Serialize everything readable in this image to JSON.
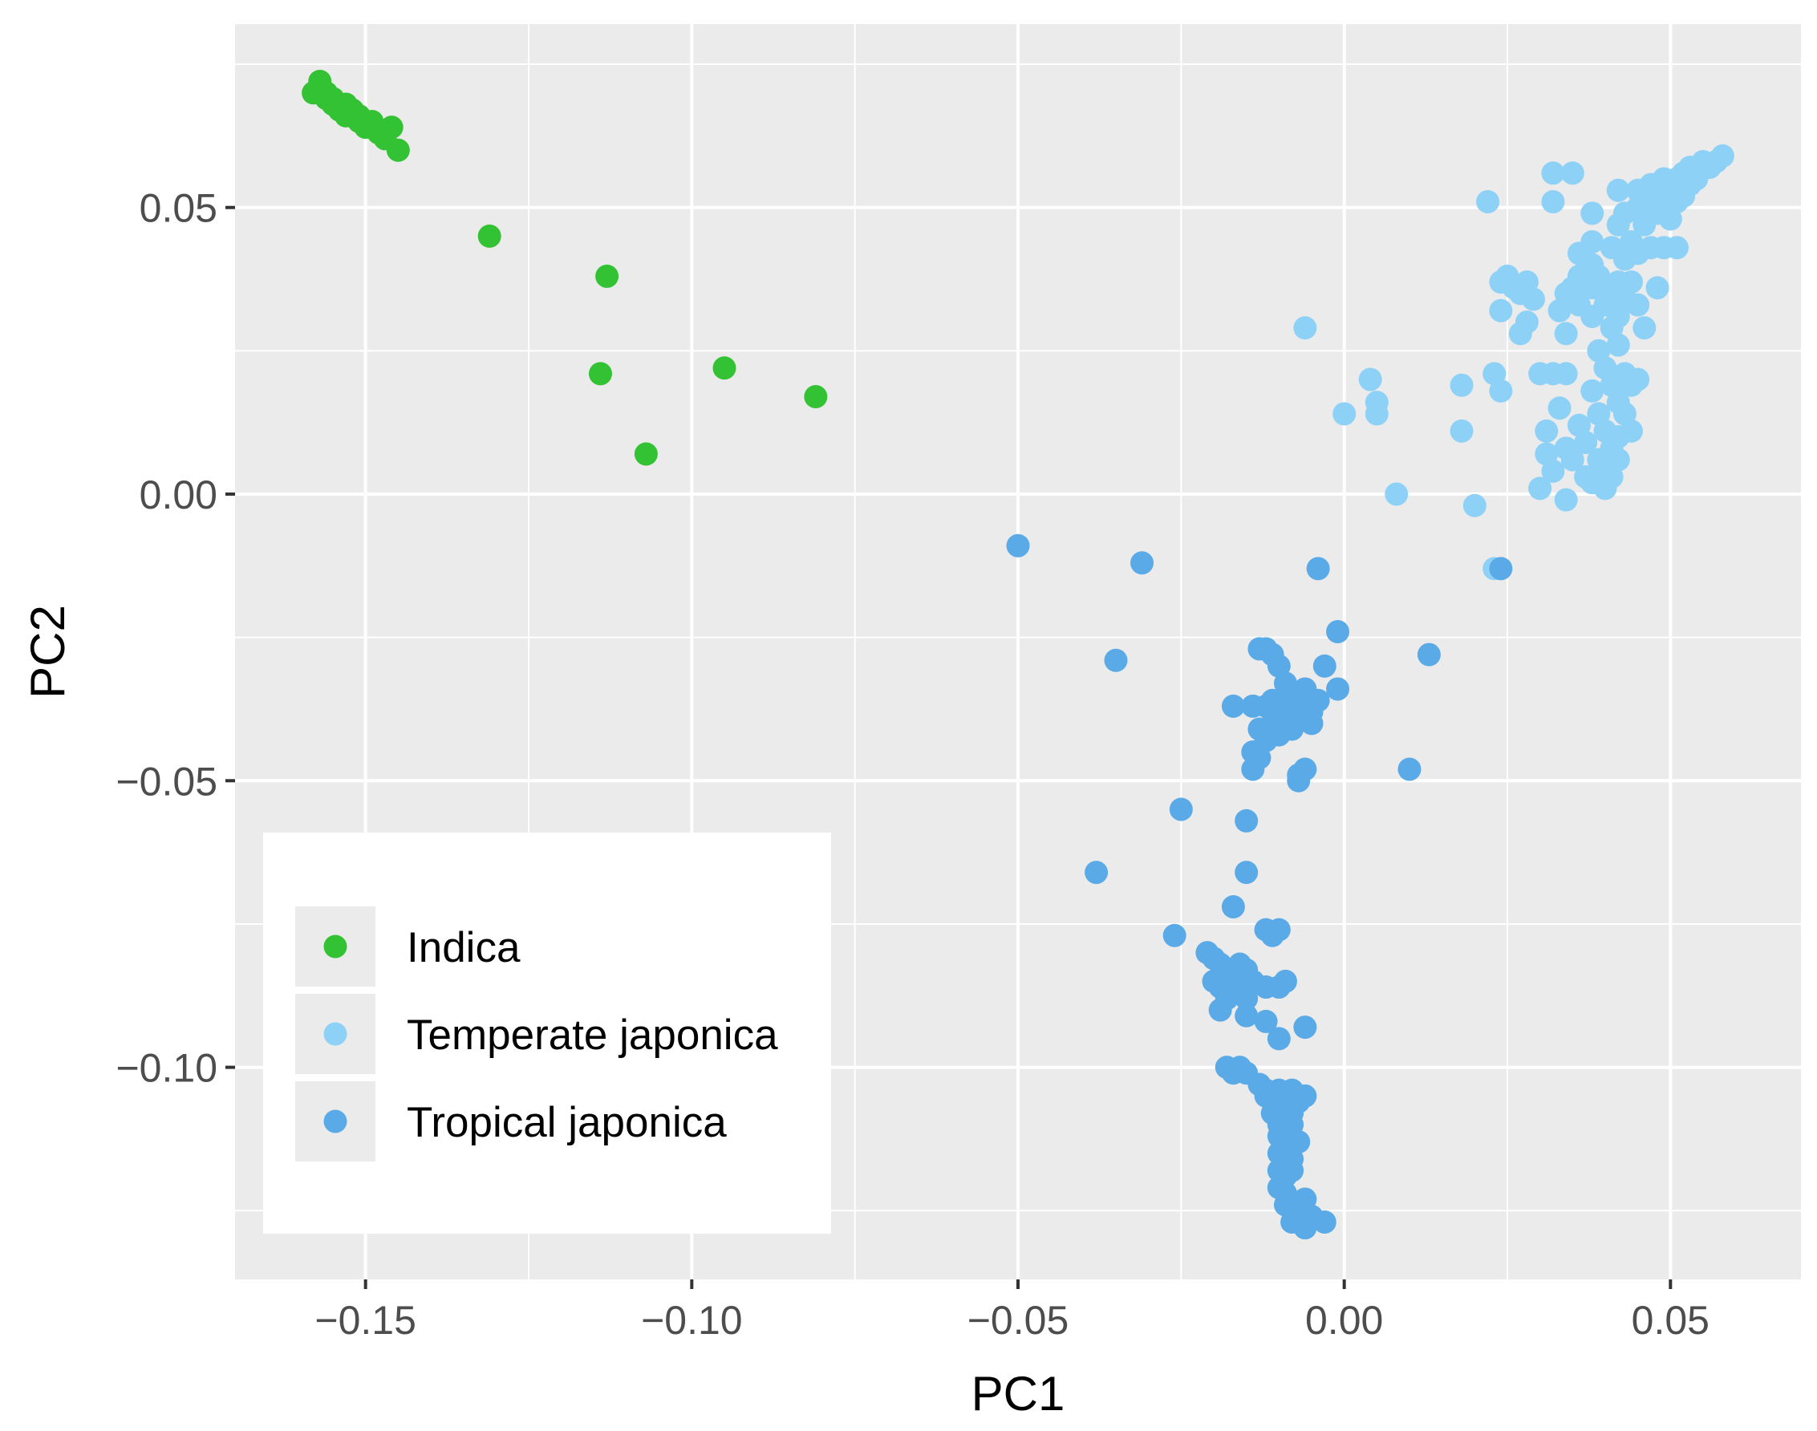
{
  "chart_data": {
    "type": "scatter",
    "title": "",
    "xlabel": "PC1",
    "ylabel": "PC2",
    "xlim": [
      -0.17,
      0.07
    ],
    "ylim": [
      -0.137,
      0.082
    ],
    "x_ticks": [
      -0.15,
      -0.1,
      -0.05,
      0.0,
      0.05
    ],
    "x_tick_labels": [
      "−0.15",
      "−0.10",
      "−0.05",
      "0.00",
      "0.05"
    ],
    "y_ticks": [
      0.05,
      0.0,
      -0.05,
      -0.1
    ],
    "y_tick_labels": [
      "0.05",
      "0.00",
      "−0.05",
      "−0.10"
    ],
    "grid": true,
    "legend_position": "bottom-left",
    "panel_background": "#ebebeb",
    "series": [
      {
        "name": "Indica",
        "color": "#33c233",
        "points": [
          [
            -0.158,
            0.07
          ],
          [
            -0.157,
            0.071
          ],
          [
            -0.157,
            0.072
          ],
          [
            -0.156,
            0.069
          ],
          [
            -0.156,
            0.07
          ],
          [
            -0.155,
            0.068
          ],
          [
            -0.155,
            0.069
          ],
          [
            -0.154,
            0.068
          ],
          [
            -0.154,
            0.067
          ],
          [
            -0.153,
            0.066
          ],
          [
            -0.153,
            0.068
          ],
          [
            -0.152,
            0.067
          ],
          [
            -0.152,
            0.066
          ],
          [
            -0.151,
            0.065
          ],
          [
            -0.151,
            0.066
          ],
          [
            -0.15,
            0.064
          ],
          [
            -0.149,
            0.065
          ],
          [
            -0.148,
            0.063
          ],
          [
            -0.147,
            0.062
          ],
          [
            -0.146,
            0.064
          ],
          [
            -0.145,
            0.06
          ],
          [
            -0.131,
            0.045
          ],
          [
            -0.113,
            0.038
          ],
          [
            -0.114,
            0.021
          ],
          [
            -0.095,
            0.022
          ],
          [
            -0.081,
            0.017
          ],
          [
            -0.107,
            0.007
          ]
        ]
      },
      {
        "name": "Temperate japonica",
        "color": "#8ed1f7",
        "points": [
          [
            -0.006,
            0.029
          ],
          [
            0.0,
            0.014
          ],
          [
            0.004,
            0.02
          ],
          [
            0.005,
            0.014
          ],
          [
            0.005,
            0.016
          ],
          [
            0.008,
            0.0
          ],
          [
            0.018,
            0.019
          ],
          [
            0.018,
            0.011
          ],
          [
            0.02,
            -0.002
          ],
          [
            0.023,
            -0.013
          ],
          [
            0.022,
            0.051
          ],
          [
            0.023,
            0.021
          ],
          [
            0.024,
            0.018
          ],
          [
            0.024,
            0.032
          ],
          [
            0.024,
            0.037
          ],
          [
            0.025,
            0.038
          ],
          [
            0.026,
            0.036
          ],
          [
            0.027,
            0.028
          ],
          [
            0.027,
            0.035
          ],
          [
            0.028,
            0.03
          ],
          [
            0.028,
            0.037
          ],
          [
            0.029,
            0.034
          ],
          [
            0.03,
            0.021
          ],
          [
            0.03,
            0.001
          ],
          [
            0.031,
            0.007
          ],
          [
            0.031,
            0.011
          ],
          [
            0.032,
            0.021
          ],
          [
            0.032,
            0.004
          ],
          [
            0.032,
            0.051
          ],
          [
            0.033,
            0.032
          ],
          [
            0.033,
            0.015
          ],
          [
            0.034,
            0.035
          ],
          [
            0.034,
            0.028
          ],
          [
            0.034,
            0.021
          ],
          [
            0.034,
            0.008
          ],
          [
            0.034,
            -0.001
          ],
          [
            0.035,
            0.036
          ],
          [
            0.035,
            0.006
          ],
          [
            0.035,
            0.056
          ],
          [
            0.036,
            0.042
          ],
          [
            0.036,
            0.038
          ],
          [
            0.036,
            0.033
          ],
          [
            0.036,
            0.012
          ],
          [
            0.037,
            0.039
          ],
          [
            0.037,
            0.009
          ],
          [
            0.037,
            0.003
          ],
          [
            0.038,
            0.049
          ],
          [
            0.038,
            0.044
          ],
          [
            0.038,
            0.04
          ],
          [
            0.038,
            0.036
          ],
          [
            0.038,
            0.031
          ],
          [
            0.038,
            0.018
          ],
          [
            0.038,
            0.002
          ],
          [
            0.039,
            0.038
          ],
          [
            0.039,
            0.025
          ],
          [
            0.039,
            0.014
          ],
          [
            0.039,
            0.006
          ],
          [
            0.04,
            0.033
          ],
          [
            0.04,
            0.022
          ],
          [
            0.04,
            0.011
          ],
          [
            0.04,
            0.004
          ],
          [
            0.04,
            0.001
          ],
          [
            0.041,
            0.043
          ],
          [
            0.041,
            0.036
          ],
          [
            0.041,
            0.029
          ],
          [
            0.041,
            0.019
          ],
          [
            0.041,
            0.008
          ],
          [
            0.041,
            0.003
          ],
          [
            0.042,
            0.053
          ],
          [
            0.042,
            0.047
          ],
          [
            0.042,
            0.037
          ],
          [
            0.042,
            0.031
          ],
          [
            0.042,
            0.026
          ],
          [
            0.042,
            0.016
          ],
          [
            0.042,
            0.01
          ],
          [
            0.042,
            0.006
          ],
          [
            0.043,
            0.049
          ],
          [
            0.043,
            0.041
          ],
          [
            0.043,
            0.034
          ],
          [
            0.043,
            0.021
          ],
          [
            0.043,
            0.014
          ],
          [
            0.044,
            0.044
          ],
          [
            0.044,
            0.037
          ],
          [
            0.044,
            0.019
          ],
          [
            0.044,
            0.011
          ],
          [
            0.045,
            0.053
          ],
          [
            0.045,
            0.05
          ],
          [
            0.045,
            0.042
          ],
          [
            0.045,
            0.033
          ],
          [
            0.045,
            0.02
          ],
          [
            0.046,
            0.052
          ],
          [
            0.046,
            0.047
          ],
          [
            0.046,
            0.029
          ],
          [
            0.047,
            0.054
          ],
          [
            0.047,
            0.05
          ],
          [
            0.047,
            0.043
          ],
          [
            0.048,
            0.053
          ],
          [
            0.048,
            0.049
          ],
          [
            0.048,
            0.036
          ],
          [
            0.049,
            0.055
          ],
          [
            0.049,
            0.051
          ],
          [
            0.049,
            0.043
          ],
          [
            0.05,
            0.054
          ],
          [
            0.05,
            0.052
          ],
          [
            0.05,
            0.048
          ],
          [
            0.051,
            0.055
          ],
          [
            0.051,
            0.051
          ],
          [
            0.051,
            0.043
          ],
          [
            0.052,
            0.056
          ],
          [
            0.052,
            0.052
          ],
          [
            0.053,
            0.057
          ],
          [
            0.053,
            0.054
          ],
          [
            0.054,
            0.057
          ],
          [
            0.054,
            0.055
          ],
          [
            0.055,
            0.058
          ],
          [
            0.056,
            0.057
          ],
          [
            0.057,
            0.058
          ],
          [
            0.058,
            0.059
          ],
          [
            0.032,
            0.056
          ]
        ]
      },
      {
        "name": "Tropical japonica",
        "color": "#5aaae7",
        "points": [
          [
            -0.05,
            -0.009
          ],
          [
            -0.031,
            -0.012
          ],
          [
            -0.035,
            -0.029
          ],
          [
            -0.004,
            -0.013
          ],
          [
            -0.001,
            -0.024
          ],
          [
            -0.003,
            -0.03
          ],
          [
            -0.001,
            -0.034
          ],
          [
            0.013,
            -0.028
          ],
          [
            0.01,
            -0.048
          ],
          [
            0.024,
            -0.013
          ],
          [
            -0.012,
            -0.027
          ],
          [
            -0.011,
            -0.028
          ],
          [
            -0.01,
            -0.03
          ],
          [
            -0.013,
            -0.027
          ],
          [
            -0.009,
            -0.033
          ],
          [
            -0.008,
            -0.035
          ],
          [
            -0.006,
            -0.034
          ],
          [
            -0.017,
            -0.037
          ],
          [
            -0.014,
            -0.037
          ],
          [
            -0.012,
            -0.037
          ],
          [
            -0.011,
            -0.036
          ],
          [
            -0.01,
            -0.039
          ],
          [
            -0.009,
            -0.038
          ],
          [
            -0.008,
            -0.037
          ],
          [
            -0.007,
            -0.038
          ],
          [
            -0.006,
            -0.037
          ],
          [
            -0.005,
            -0.038
          ],
          [
            -0.004,
            -0.036
          ],
          [
            -0.013,
            -0.041
          ],
          [
            -0.012,
            -0.043
          ],
          [
            -0.011,
            -0.04
          ],
          [
            -0.01,
            -0.042
          ],
          [
            -0.008,
            -0.041
          ],
          [
            -0.007,
            -0.039
          ],
          [
            -0.005,
            -0.04
          ],
          [
            -0.014,
            -0.045
          ],
          [
            -0.013,
            -0.046
          ],
          [
            -0.014,
            -0.048
          ],
          [
            -0.007,
            -0.049
          ],
          [
            -0.006,
            -0.048
          ],
          [
            -0.007,
            -0.05
          ],
          [
            -0.025,
            -0.055
          ],
          [
            -0.015,
            -0.057
          ],
          [
            -0.038,
            -0.066
          ],
          [
            -0.015,
            -0.066
          ],
          [
            -0.017,
            -0.072
          ],
          [
            -0.026,
            -0.077
          ],
          [
            -0.012,
            -0.076
          ],
          [
            -0.01,
            -0.076
          ],
          [
            -0.011,
            -0.077
          ],
          [
            -0.021,
            -0.08
          ],
          [
            -0.02,
            -0.081
          ],
          [
            -0.019,
            -0.082
          ],
          [
            -0.018,
            -0.083
          ],
          [
            -0.016,
            -0.082
          ],
          [
            -0.015,
            -0.083
          ],
          [
            -0.02,
            -0.085
          ],
          [
            -0.019,
            -0.086
          ],
          [
            -0.017,
            -0.085
          ],
          [
            -0.016,
            -0.086
          ],
          [
            -0.014,
            -0.085
          ],
          [
            -0.012,
            -0.086
          ],
          [
            -0.01,
            -0.086
          ],
          [
            -0.009,
            -0.085
          ],
          [
            -0.018,
            -0.088
          ],
          [
            -0.015,
            -0.088
          ],
          [
            -0.019,
            -0.09
          ],
          [
            -0.015,
            -0.091
          ],
          [
            -0.012,
            -0.092
          ],
          [
            -0.01,
            -0.095
          ],
          [
            -0.006,
            -0.093
          ],
          [
            -0.018,
            -0.1
          ],
          [
            -0.017,
            -0.101
          ],
          [
            -0.016,
            -0.1
          ],
          [
            -0.015,
            -0.101
          ],
          [
            -0.012,
            -0.104
          ],
          [
            -0.01,
            -0.104
          ],
          [
            -0.008,
            -0.104
          ],
          [
            -0.011,
            -0.106
          ],
          [
            -0.009,
            -0.106
          ],
          [
            -0.007,
            -0.106
          ],
          [
            -0.006,
            -0.105
          ],
          [
            -0.011,
            -0.108
          ],
          [
            -0.009,
            -0.109
          ],
          [
            -0.008,
            -0.108
          ],
          [
            -0.01,
            -0.11
          ],
          [
            -0.008,
            -0.11
          ],
          [
            -0.01,
            -0.112
          ],
          [
            -0.009,
            -0.113
          ],
          [
            -0.007,
            -0.113
          ],
          [
            -0.01,
            -0.115
          ],
          [
            -0.008,
            -0.116
          ],
          [
            -0.01,
            -0.118
          ],
          [
            -0.009,
            -0.119
          ],
          [
            -0.008,
            -0.118
          ],
          [
            -0.01,
            -0.121
          ],
          [
            -0.009,
            -0.122
          ],
          [
            -0.009,
            -0.124
          ],
          [
            -0.007,
            -0.125
          ],
          [
            -0.006,
            -0.123
          ],
          [
            -0.005,
            -0.126
          ],
          [
            -0.008,
            -0.127
          ],
          [
            -0.006,
            -0.128
          ],
          [
            -0.003,
            -0.127
          ],
          [
            -0.012,
            -0.105
          ],
          [
            -0.013,
            -0.103
          ]
        ]
      }
    ]
  }
}
